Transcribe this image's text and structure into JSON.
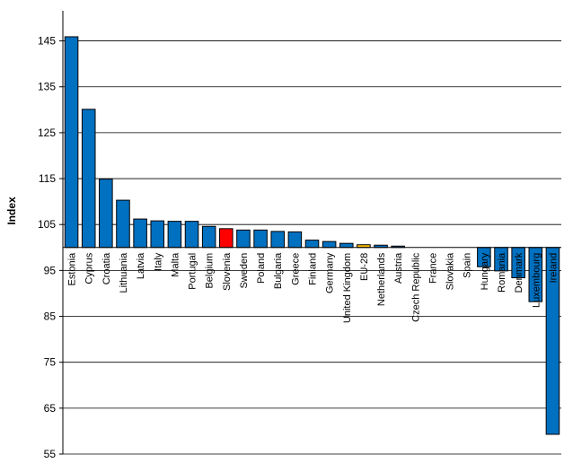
{
  "chart_data": {
    "type": "bar",
    "title": "",
    "xlabel": "",
    "ylabel": "Index",
    "ylim": [
      55,
      150
    ],
    "baseline": 100,
    "yticks": [
      55,
      65,
      75,
      85,
      95,
      105,
      115,
      125,
      135,
      145
    ],
    "grid": true,
    "categories": [
      "Estonia",
      "Cyprus",
      "Croatia",
      "Lithuania",
      "Latvia",
      "Italy",
      "Malta",
      "Portugal",
      "Belgium",
      "Slovenia",
      "Sweden",
      "Poland",
      "Bulgaria",
      "Greece",
      "Finland",
      "Germany",
      "United Kingdom",
      "EU-28",
      "Netherlands",
      "Austria",
      "Czech Republic",
      "France",
      "Slovakia",
      "Spain",
      "Hungary",
      "Romania",
      "Denmark",
      "Luxembourg",
      "Ireland"
    ],
    "values": [
      145.9,
      130.1,
      114.9,
      110.3,
      106.2,
      105.8,
      105.7,
      105.7,
      104.6,
      104.1,
      103.8,
      103.8,
      103.5,
      103.4,
      101.6,
      101.3,
      100.9,
      100.6,
      100.5,
      100.3,
      100.0,
      100.0,
      100.0,
      100.0,
      95.8,
      94.9,
      93.4,
      88.2,
      59.3
    ],
    "colors": {
      "default": "#0070C0",
      "highlight": "#FF0000",
      "aggregate": "#FFC000",
      "highlight_category": "Slovenia",
      "aggregate_category": "EU-28"
    }
  }
}
